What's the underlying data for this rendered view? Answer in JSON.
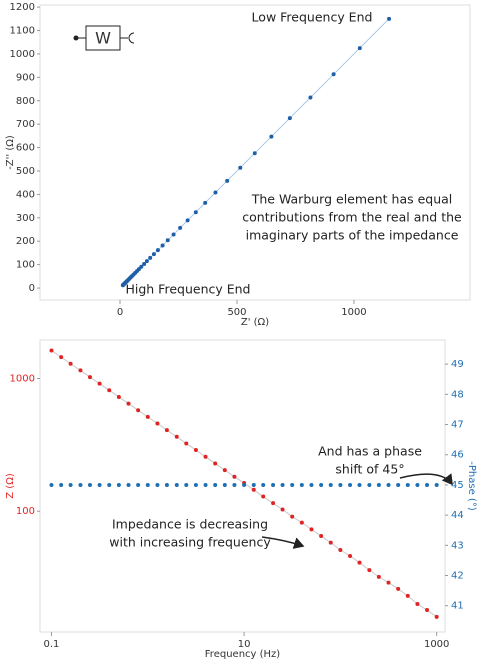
{
  "chart_data": [
    {
      "type": "scatter",
      "x_label": "Z' (Ω)",
      "y_label": "-Z'' (Ω)",
      "symbol": "W",
      "x": [
        1150,
        1025,
        913,
        814,
        726,
        647,
        576,
        514,
        458,
        408,
        364,
        324,
        289,
        257,
        229,
        204,
        182,
        162,
        145,
        129,
        115,
        103,
        91,
        81,
        73,
        65,
        58,
        51,
        46,
        41,
        36,
        32,
        29,
        26,
        23,
        20,
        18,
        16,
        14,
        13,
        12
      ],
      "series": [
        {
          "color": "#1f5fa8",
          "line_color": "#a9c8e6",
          "values": [
            1150,
            1025,
            913,
            814,
            726,
            647,
            576,
            514,
            458,
            408,
            364,
            324,
            289,
            257,
            229,
            204,
            182,
            162,
            145,
            129,
            115,
            103,
            91,
            81,
            73,
            65,
            58,
            51,
            46,
            41,
            36,
            32,
            29,
            26,
            23,
            20,
            18,
            16,
            14,
            13,
            12
          ]
        }
      ],
      "xlim": [
        -342,
        1496
      ],
      "ylim": [
        -51,
        1209
      ],
      "xticks": [
        0,
        500,
        1000
      ],
      "yticks": [
        0,
        100,
        200,
        300,
        400,
        500,
        600,
        700,
        800,
        900,
        1000,
        1100,
        1200
      ],
      "annotations": [
        [
          "Low Frequency End"
        ],
        [
          "High Frequency End"
        ],
        [
          "The Warburg element has equal",
          "contributions from the real and the",
          "imaginary parts of the impedance"
        ]
      ]
    },
    {
      "type": "scatter",
      "x_label": "Frequency (Hz)",
      "y_label": "Z (Ω)",
      "y2_label": "-Phase (°)",
      "x_log": true,
      "y_log": true,
      "x": [
        0.1,
        0.126,
        0.158,
        0.2,
        0.251,
        0.316,
        0.398,
        0.501,
        0.631,
        0.794,
        1,
        1.26,
        1.58,
        2,
        2.51,
        3.16,
        3.98,
        5.01,
        6.31,
        7.94,
        10,
        12.6,
        15.8,
        20,
        25.1,
        31.6,
        39.8,
        50.1,
        63.1,
        79.4,
        100,
        126,
        158,
        200,
        251,
        316,
        398,
        501,
        631,
        794,
        1000
      ],
      "series": [
        {
          "color": "#e02424",
          "line_color": "#c8c8c8",
          "values": [
            1626,
            1449,
            1291,
            1150,
            1025,
            914,
            815,
            726,
            647,
            577,
            514,
            458,
            408,
            364,
            324,
            289,
            257,
            229,
            204,
            182,
            163,
            145,
            129,
            115,
            103,
            91,
            82,
            73,
            65,
            58,
            51,
            46,
            41,
            36,
            32,
            29,
            26,
            23,
            20,
            18,
            16
          ]
        },
        {
          "color": "#1f6fb4",
          "axis": "y2",
          "values": [
            45,
            45,
            45,
            45,
            45,
            45,
            45,
            45,
            45,
            45,
            45,
            45,
            45,
            45,
            45,
            45,
            45,
            45,
            45,
            45,
            45,
            45,
            45,
            45,
            45,
            45,
            45,
            45,
            45,
            45,
            45,
            45,
            45,
            45,
            45,
            45,
            45,
            45,
            45,
            45,
            45
          ]
        }
      ],
      "xlim": [
        0.076,
        1220
      ],
      "ylim": [
        12.3,
        1950
      ],
      "y2lim": [
        40.13,
        49.8
      ],
      "xticks": [
        0.1,
        10,
        1000
      ],
      "yticks": [
        100,
        1000
      ],
      "y2ticks": [
        41,
        42,
        43,
        44,
        45,
        46,
        47,
        48,
        49
      ],
      "annotations": [
        [
          "And has a phase",
          "shift of 45°"
        ],
        [
          "Impedance is decreasing",
          "with increasing frequency"
        ]
      ]
    }
  ]
}
